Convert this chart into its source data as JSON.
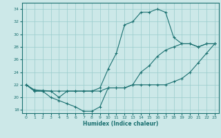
{
  "xlabel": "Humidex (Indice chaleur)",
  "bg_color": "#cce8e8",
  "grid_color": "#99cccc",
  "line_color": "#1a7070",
  "xlim": [
    -0.5,
    23.5
  ],
  "ylim": [
    17.5,
    35.0
  ],
  "xticks": [
    0,
    1,
    2,
    3,
    4,
    5,
    6,
    7,
    8,
    9,
    10,
    11,
    12,
    13,
    14,
    15,
    16,
    17,
    18,
    19,
    20,
    21,
    22,
    23
  ],
  "yticks": [
    18,
    20,
    22,
    24,
    26,
    28,
    30,
    32,
    34
  ],
  "line1_x": [
    0,
    1,
    2,
    3,
    4,
    5,
    6,
    7,
    8,
    9,
    10,
    11,
    12,
    13,
    14,
    15,
    16,
    17,
    18,
    19,
    20,
    21,
    22,
    23
  ],
  "line1_y": [
    22,
    21,
    21,
    21,
    20,
    21,
    21,
    21,
    21,
    21.5,
    24.5,
    27,
    31.5,
    32,
    33.5,
    33.5,
    34,
    33.5,
    29.5,
    28.5,
    28.5,
    28,
    28.5,
    28.5
  ],
  "line2_x": [
    0,
    1,
    2,
    3,
    4,
    5,
    6,
    7,
    8,
    9,
    10,
    11,
    12,
    13,
    14,
    15,
    16,
    17,
    18,
    19,
    20,
    21,
    22,
    23
  ],
  "line2_y": [
    22,
    21,
    21,
    20,
    19.5,
    19,
    18.5,
    17.8,
    17.8,
    18.5,
    21.5,
    21.5,
    21.5,
    22,
    22,
    22,
    22,
    22,
    22.5,
    23,
    24,
    25.5,
    27,
    28.5
  ],
  "line3_x": [
    0,
    1,
    2,
    3,
    4,
    5,
    6,
    7,
    8,
    9,
    10,
    11,
    12,
    13,
    14,
    15,
    16,
    17,
    18,
    19,
    20,
    21,
    22,
    23
  ],
  "line3_y": [
    22,
    21.2,
    21.1,
    21,
    21,
    21,
    21,
    21,
    21,
    21,
    21.5,
    21.5,
    21.5,
    22,
    24,
    25,
    26.5,
    27.5,
    28,
    28.5,
    28.5,
    28,
    28.5,
    28.5
  ]
}
